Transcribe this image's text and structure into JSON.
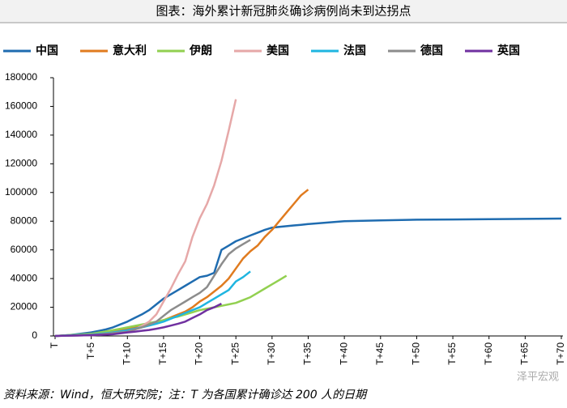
{
  "chart_data": {
    "type": "line",
    "title": "图表：海外累计新冠肺炎确诊病例尚未到达拐点",
    "source": "资料来源：Wind，恒大研究院；注：T 为各国累计确诊达 200 人的日期",
    "watermark": "泽平宏观",
    "x": [
      0,
      1,
      2,
      3,
      4,
      5,
      6,
      7,
      8,
      9,
      10,
      11,
      12,
      13,
      14,
      15,
      16,
      17,
      18,
      19,
      20,
      21,
      22,
      23,
      24,
      25,
      26,
      27,
      28,
      29,
      30,
      31,
      32,
      33,
      34,
      35,
      40,
      45,
      50,
      55,
      60,
      65,
      70
    ],
    "xlim": [
      0,
      70
    ],
    "xticks": [
      {
        "value": 0,
        "label": "T"
      },
      {
        "value": 5,
        "label": "T+5"
      },
      {
        "value": 10,
        "label": "T+10"
      },
      {
        "value": 15,
        "label": "T+15"
      },
      {
        "value": 20,
        "label": "T+20"
      },
      {
        "value": 25,
        "label": "T+25"
      },
      {
        "value": 30,
        "label": "T+30"
      },
      {
        "value": 35,
        "label": "T+35"
      },
      {
        "value": 40,
        "label": "T+40"
      },
      {
        "value": 45,
        "label": "T+45"
      },
      {
        "value": 50,
        "label": "T+50"
      },
      {
        "value": 55,
        "label": "T+55"
      },
      {
        "value": 60,
        "label": "T+60"
      },
      {
        "value": 65,
        "label": "T+65"
      },
      {
        "value": 70,
        "label": "T+70"
      }
    ],
    "ylim": [
      0,
      180000
    ],
    "yticks": [
      0,
      20000,
      40000,
      60000,
      80000,
      100000,
      120000,
      140000,
      160000,
      180000
    ],
    "grid": false,
    "legend": "top",
    "series": [
      {
        "name": "中国",
        "color": "#1f6cb0",
        "values": [
          0,
          300,
          600,
          1200,
          1800,
          2500,
          3500,
          4500,
          6000,
          8000,
          10000,
          12500,
          15000,
          18000,
          22000,
          26000,
          29000,
          32000,
          35000,
          38000,
          41000,
          42000,
          44000,
          60000,
          63000,
          66000,
          68000,
          70000,
          72000,
          74000,
          75500,
          76000,
          76500,
          77000,
          77500,
          78000,
          80000,
          80500,
          81000,
          81200,
          81400,
          81600,
          81800
        ]
      },
      {
        "name": "意大利",
        "color": "#e07b1f",
        "values": [
          0,
          200,
          400,
          600,
          800,
          1000,
          1500,
          2000,
          3000,
          4000,
          5000,
          6000,
          7000,
          8500,
          9500,
          11000,
          13000,
          15000,
          17000,
          20000,
          24000,
          27000,
          31000,
          35000,
          40000,
          47000,
          54000,
          59000,
          63000,
          69000,
          74000,
          80000,
          86000,
          92000,
          98000,
          102000,
          null,
          null,
          null,
          null,
          null,
          null,
          null
        ]
      },
      {
        "name": "伊朗",
        "color": "#92d050",
        "values": [
          0,
          300,
          600,
          900,
          1200,
          1500,
          2300,
          3100,
          4000,
          5000,
          6000,
          7000,
          8000,
          9000,
          10000,
          11000,
          12500,
          13500,
          15000,
          16500,
          18000,
          19000,
          20000,
          21000,
          22000,
          23000,
          25000,
          27000,
          30000,
          33000,
          36000,
          39000,
          42000,
          null,
          null,
          null,
          null,
          null,
          null,
          null,
          null,
          null,
          null
        ]
      },
      {
        "name": "美国",
        "color": "#e6a8a8",
        "values": [
          0,
          100,
          200,
          300,
          400,
          500,
          800,
          1200,
          1700,
          2300,
          3000,
          4500,
          7000,
          10000,
          15000,
          24000,
          33000,
          43000,
          52000,
          69000,
          82000,
          92000,
          105000,
          122000,
          143000,
          165000,
          null,
          null,
          null,
          null,
          null,
          null,
          null,
          null,
          null,
          null,
          null,
          null,
          null,
          null,
          null,
          null,
          null
        ]
      },
      {
        "name": "法国",
        "color": "#1fb5e0",
        "values": [
          0,
          200,
          400,
          600,
          800,
          1000,
          1400,
          1900,
          2500,
          3200,
          4000,
          5000,
          6000,
          7200,
          8500,
          10000,
          12000,
          14000,
          16000,
          18000,
          20000,
          23000,
          26000,
          29000,
          32000,
          38000,
          41000,
          45000,
          null,
          null,
          null,
          null,
          null,
          null,
          null,
          null,
          null,
          null,
          null,
          null,
          null,
          null,
          null
        ]
      },
      {
        "name": "德国",
        "color": "#8c8c8c",
        "values": [
          0,
          150,
          300,
          450,
          600,
          800,
          1100,
          1500,
          2000,
          2500,
          3000,
          4500,
          6000,
          8000,
          10000,
          14000,
          18000,
          21000,
          24000,
          27000,
          30000,
          34000,
          42000,
          50000,
          57000,
          61000,
          64000,
          67000,
          null,
          null,
          null,
          null,
          null,
          null,
          null,
          null,
          null,
          null,
          null,
          null,
          null,
          null,
          null
        ]
      },
      {
        "name": "英国",
        "color": "#7030a0",
        "values": [
          0,
          100,
          200,
          300,
          400,
          500,
          700,
          900,
          1200,
          1800,
          2500,
          3000,
          3600,
          4200,
          5000,
          6000,
          7200,
          8500,
          10000,
          12500,
          15000,
          18000,
          20000,
          22500,
          null,
          null,
          null,
          null,
          null,
          null,
          null,
          null,
          null,
          null,
          null,
          null,
          null,
          null,
          null,
          null,
          null,
          null,
          null
        ]
      }
    ]
  }
}
